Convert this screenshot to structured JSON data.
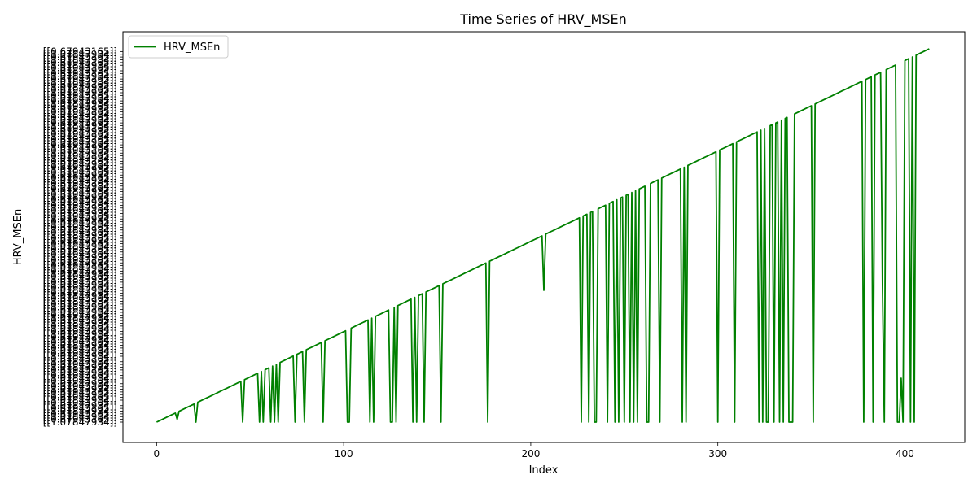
{
  "chart_data": {
    "type": "line",
    "title": "Time Series of HRV_MSEn",
    "xlabel": "Index",
    "ylabel": "HRV_MSEn",
    "xlim": [
      -18,
      432
    ],
    "x_ticks": [
      0,
      100,
      200,
      300,
      400
    ],
    "y_scale": "categorical",
    "y_category_count": 136,
    "y_tick_label_note": "Each y tick is a bracketed string value like [[1.0784...]]; the labels overlap and are illegible.",
    "ytick_visible_samples": [
      "[[1.07847934]]",
      "[[0.67943165]]"
    ],
    "grid": false,
    "legend": {
      "position": "top-left",
      "entries": [
        "HRV_MSEn"
      ]
    },
    "series": [
      {
        "name": "HRV_MSEn",
        "color": "#008000",
        "baseline_level": 0,
        "trend_start": [
          0,
          0
        ],
        "trend_end": [
          413,
          136
        ],
        "drops_to_baseline_at": [
          21,
          46,
          55,
          57,
          61,
          63,
          65,
          74,
          79,
          89,
          102,
          103,
          114,
          116,
          125,
          126,
          128,
          137,
          139,
          143,
          152,
          177,
          227,
          231,
          234,
          235,
          241,
          245,
          247,
          250,
          253,
          255,
          257,
          262,
          263,
          269,
          281,
          283,
          300,
          309,
          322,
          324,
          326,
          327,
          330,
          333,
          335,
          338,
          339,
          340,
          351,
          378,
          383,
          389,
          396,
          397,
          399,
          403,
          405
        ],
        "partial_drops": [
          [
            11,
            1
          ],
          [
            207,
            48
          ],
          [
            388,
            50
          ],
          [
            398,
            16
          ]
        ]
      }
    ]
  }
}
